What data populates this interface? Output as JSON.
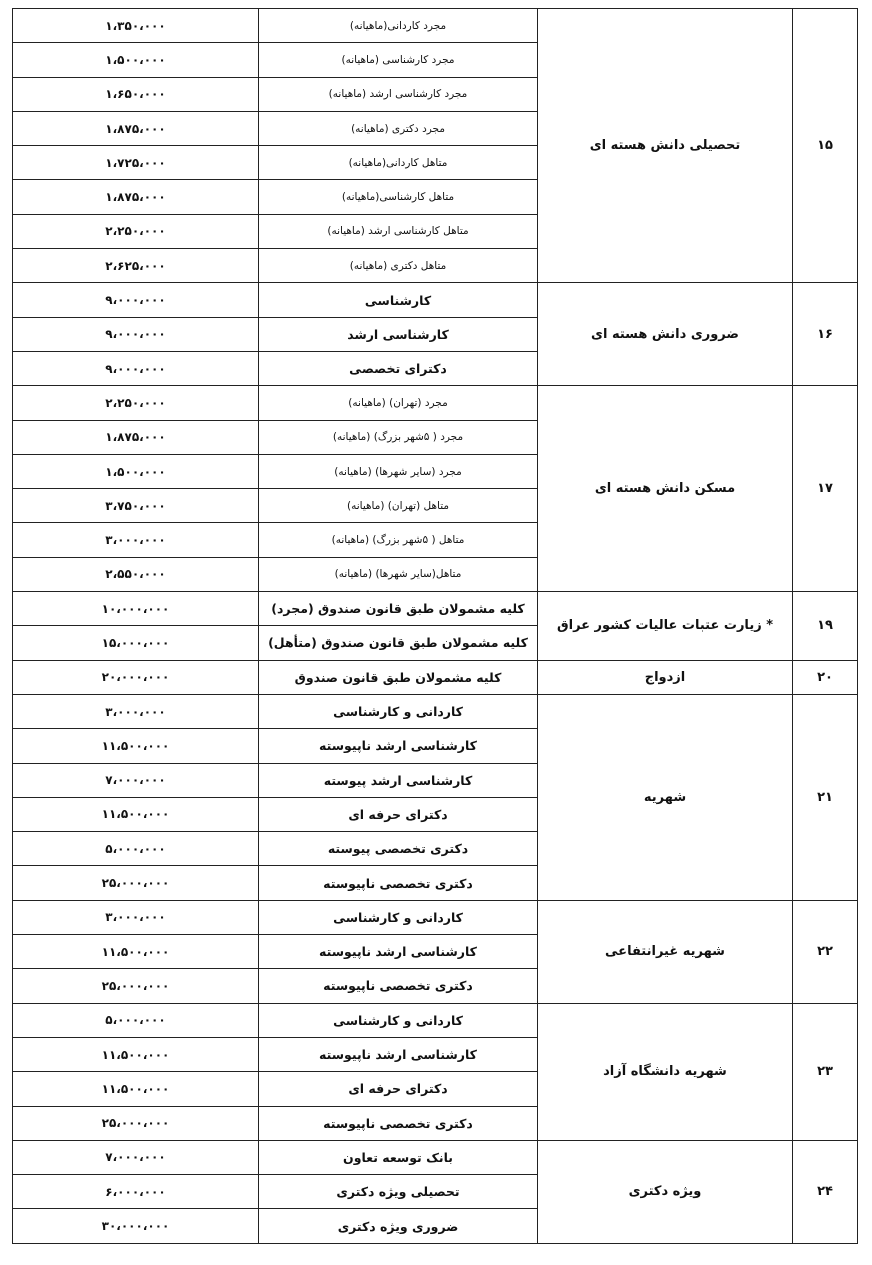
{
  "table": {
    "groups": [
      {
        "number": "۱۵",
        "category": "تحصیلی دانش هسته ای",
        "rows": [
          [
            "مجرد کاردانی(ماهیانه)",
            "۱،۳۵۰،۰۰۰"
          ],
          [
            "مجرد کارشناسی (ماهیانه)",
            "۱،۵۰۰،۰۰۰"
          ],
          [
            "مجرد کارشناسی ارشد (ماهیانه)",
            "۱،۶۵۰،۰۰۰"
          ],
          [
            "مجرد دکتری (ماهیانه)",
            "۱،۸۷۵،۰۰۰"
          ],
          [
            "متاهل کاردانی(ماهیانه)",
            "۱،۷۲۵،۰۰۰"
          ],
          [
            "متاهل کارشناسی(ماهیانه)",
            "۱،۸۷۵،۰۰۰"
          ],
          [
            "متاهل کارشناسی ارشد (ماهیانه)",
            "۲،۲۵۰،۰۰۰"
          ],
          [
            "متاهل دکتری (ماهیانه)",
            "۲،۶۲۵،۰۰۰"
          ]
        ]
      },
      {
        "number": "۱۶",
        "category": "ضروری دانش هسته ای",
        "rows": [
          [
            "کارشناسی",
            "۹،۰۰۰،۰۰۰"
          ],
          [
            "کارشناسی ارشد",
            "۹،۰۰۰،۰۰۰"
          ],
          [
            "دکترای تخصصی",
            "۹،۰۰۰،۰۰۰"
          ]
        ]
      },
      {
        "number": "۱۷",
        "category": "مسکن دانش هسته ای",
        "rows": [
          [
            "مجرد (تهران) (ماهیانه)",
            "۲،۲۵۰،۰۰۰"
          ],
          [
            "مجرد ( ۵شهر بزرگ) (ماهیانه)",
            "۱،۸۷۵،۰۰۰"
          ],
          [
            "مجرد (سایر شهرها) (ماهیانه)",
            "۱،۵۰۰،۰۰۰"
          ],
          [
            "متاهل (تهران) (ماهیانه)",
            "۳،۷۵۰،۰۰۰"
          ],
          [
            "متاهل ( ۵شهر بزرگ) (ماهیانه)",
            "۳،۰۰۰،۰۰۰"
          ],
          [
            "متاهل(سایر شهرها) (ماهیانه)",
            "۲،۵۵۰،۰۰۰"
          ]
        ]
      },
      {
        "number": "۱۹",
        "category": "* زیارت عتبات عالیات کشور عراق",
        "rows": [
          [
            "کلیه مشمولان طبق قانون صندوق (مجرد)",
            "۱۰،۰۰۰،۰۰۰"
          ],
          [
            "کلیه مشمولان طبق قانون صندوق (متأهل)",
            "۱۵،۰۰۰،۰۰۰"
          ]
        ]
      },
      {
        "number": "۲۰",
        "category": "ازدواج",
        "rows": [
          [
            "کلیه مشمولان طبق قانون صندوق",
            "۲۰،۰۰۰،۰۰۰"
          ]
        ]
      },
      {
        "number": "۲۱",
        "category": "شهریه",
        "rows": [
          [
            "کاردانی و کارشناسی",
            "۳،۰۰۰،۰۰۰"
          ],
          [
            "کارشناسی ارشد ناپیوسته",
            "۱۱،۵۰۰،۰۰۰"
          ],
          [
            "کارشناسی ارشد پیوسته",
            "۷،۰۰۰،۰۰۰"
          ],
          [
            "دکترای حرفه ای",
            "۱۱،۵۰۰،۰۰۰"
          ],
          [
            "دکتری تخصصی پیوسته",
            "۵،۰۰۰،۰۰۰"
          ],
          [
            "دکتری تخصصی ناپیوسته",
            "۲۵،۰۰۰،۰۰۰"
          ]
        ]
      },
      {
        "number": "۲۲",
        "category": "شهریه غیرانتفاعی",
        "rows": [
          [
            "کاردانی و کارشناسی",
            "۳،۰۰۰،۰۰۰"
          ],
          [
            "کارشناسی ارشد ناپیوسته",
            "۱۱،۵۰۰،۰۰۰"
          ],
          [
            "دکتری تخصصی ناپیوسته",
            "۲۵،۰۰۰،۰۰۰"
          ]
        ]
      },
      {
        "number": "۲۳",
        "category": "شهریه دانشگاه آزاد",
        "rows": [
          [
            "کاردانی و کارشناسی",
            "۵،۰۰۰،۰۰۰"
          ],
          [
            "کارشناسی ارشد ناپیوسته",
            "۱۱،۵۰۰،۰۰۰"
          ],
          [
            "دکترای حرفه ای",
            "۱۱،۵۰۰،۰۰۰"
          ],
          [
            "دکتری تخصصی ناپیوسته",
            "۲۵،۰۰۰،۰۰۰"
          ]
        ]
      },
      {
        "number": "۲۴",
        "category": "ویژه دکتری",
        "rows": [
          [
            "بانک توسعه تعاون",
            "۷،۰۰۰،۰۰۰"
          ],
          [
            "تحصیلی ویژه دکتری",
            "۶،۰۰۰،۰۰۰"
          ],
          [
            "ضروری ویژه دکتری",
            "۳۰،۰۰۰،۰۰۰"
          ]
        ]
      }
    ]
  }
}
